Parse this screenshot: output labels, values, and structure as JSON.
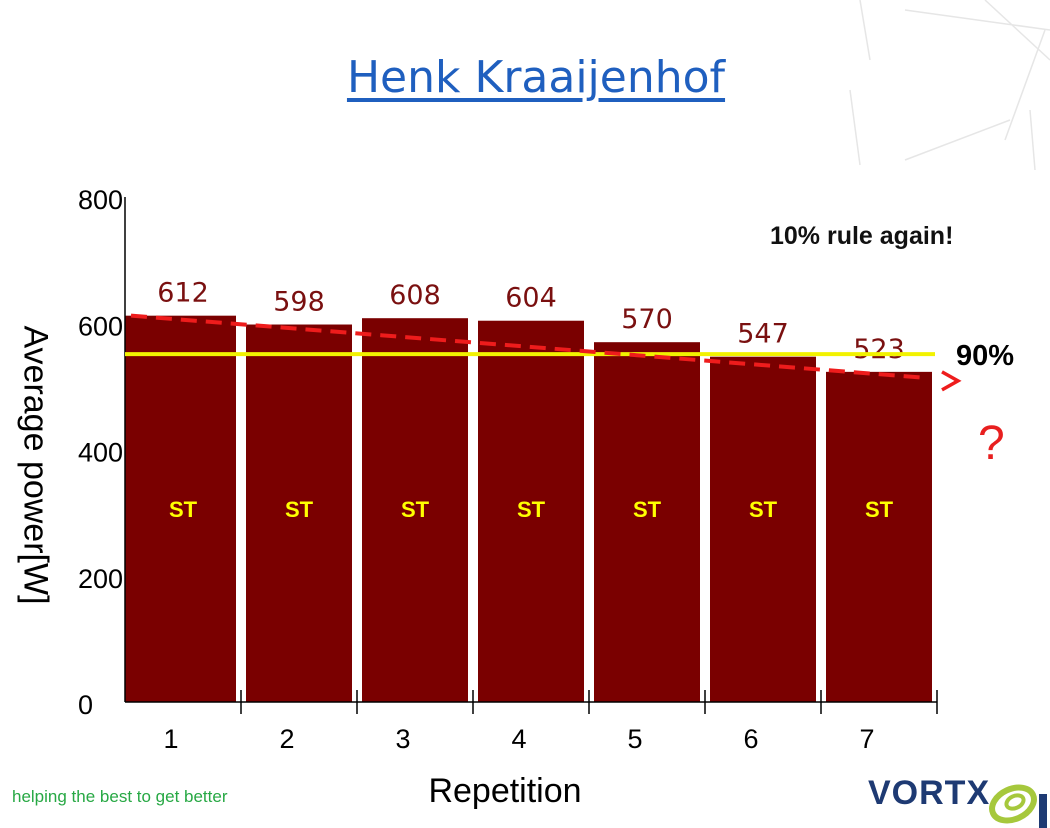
{
  "slide": {
    "title": "Henk Kraaijenhof",
    "rule_note": "10% rule again!",
    "threshold_label": "90%",
    "question_mark": "?",
    "tagline": "helping the best to get better",
    "brand": "VORTX"
  },
  "colors": {
    "bar": "#7a0000",
    "bar_text": "#ffff00",
    "value_text": "#7a1010",
    "threshold": "#f2f200",
    "trend": "#ee1c1c",
    "title": "#1f5fbf",
    "tagline": "#27a844",
    "brand": "#1e3a73",
    "brand_mark": "#a6c83c"
  },
  "chart_data": {
    "type": "bar",
    "categories": [
      "1",
      "2",
      "3",
      "4",
      "5",
      "6",
      "7"
    ],
    "values": [
      612,
      598,
      608,
      604,
      570,
      547,
      523
    ],
    "bar_labels": [
      "ST",
      "ST",
      "ST",
      "ST",
      "ST",
      "ST",
      "ST"
    ],
    "xlabel": "Repetition",
    "ylabel": "Average power[W]",
    "ylim": [
      0,
      800
    ],
    "yticks": [
      "0",
      "200",
      "400",
      "600",
      "800"
    ],
    "grid": false,
    "threshold": {
      "value": 551,
      "label": "90%"
    },
    "trendline": {
      "from": {
        "x": 1,
        "y": 612
      },
      "to": {
        "x": 7,
        "y": 523
      }
    }
  }
}
